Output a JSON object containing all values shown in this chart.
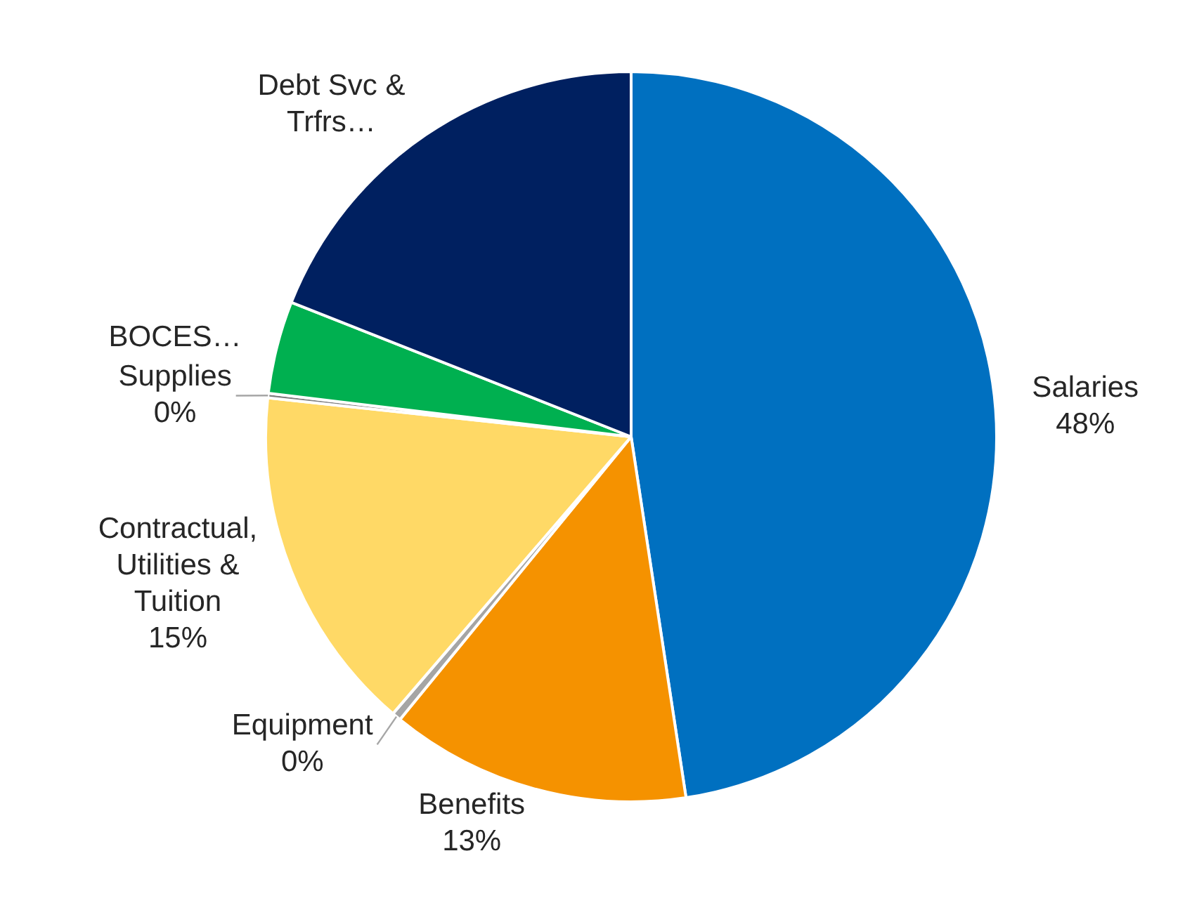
{
  "chart_data": {
    "type": "pie",
    "categories": [
      "Salaries",
      "Benefits",
      "Equipment",
      "Contractual, Utilities & Tuition",
      "Supplies",
      "BOCES…",
      "Debt Svc & Trfrs…"
    ],
    "values": [
      47.6,
      13.3,
      0.4,
      15.4,
      0.2,
      4.1,
      19.0
    ],
    "value_labels": [
      "48%",
      "13%",
      "0%",
      "15%",
      "0%",
      null,
      null
    ],
    "colors": [
      "#0070c0",
      "#f59200",
      "#a5a5a5",
      "#ffd966",
      "#7f7f7f",
      "#00b050",
      "#002060"
    ],
    "legend": false
  }
}
